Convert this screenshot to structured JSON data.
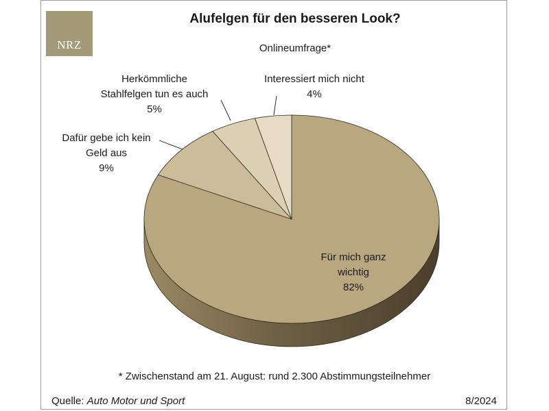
{
  "header": {
    "logo_text": "NRZ",
    "title": "Alufelgen für den besseren Look?",
    "subtitle": "Onlineumfrage*"
  },
  "colors": {
    "slice_top": [
      "#b9a87f",
      "#cbbd99",
      "#dbd0b4",
      "#e6dcc6"
    ],
    "side_dark": "#4a3f2c",
    "logo_bg": "#a39a78"
  },
  "chart_data": {
    "type": "pie",
    "title": "Alufelgen für den besseren Look?",
    "subtitle": "Onlineumfrage*",
    "unit": "%",
    "slices": [
      {
        "label_lines": [
          "Für mich ganz",
          "wichtig"
        ],
        "value": 82,
        "value_label": "82%"
      },
      {
        "label_lines": [
          "Dafür gebe ich kein",
          "Geld aus"
        ],
        "value": 9,
        "value_label": "9%"
      },
      {
        "label_lines": [
          "Herkömmliche",
          "Stahlfelgen tun es auch"
        ],
        "value": 5,
        "value_label": "5%"
      },
      {
        "label_lines": [
          "Interessiert mich nicht"
        ],
        "value": 4,
        "value_label": "4%"
      }
    ]
  },
  "footer": {
    "footnote": "* Zwischenstand am 21. August: rund 2.300 Abstimmungsteilnehmer",
    "source_prefix": "Quelle: ",
    "source_name": "Auto Motor und Sport",
    "date": "8/2024"
  }
}
